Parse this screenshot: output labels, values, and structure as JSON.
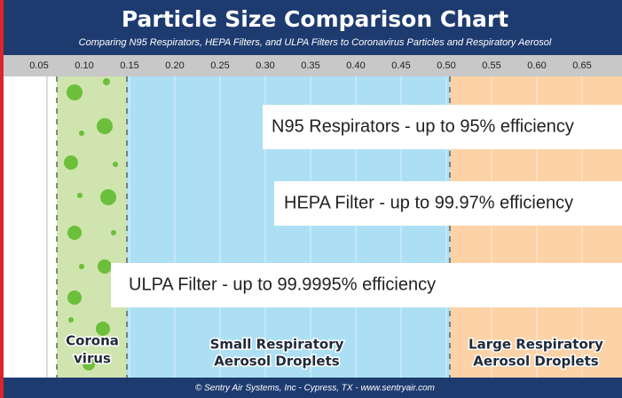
{
  "header": {
    "title": "Particle Size Comparison Chart",
    "subtitle": "Comparing N95 Respirators, HEPA Filters, and ULPA Filters to Coronavirus Particles and Respiratory Aerosol"
  },
  "axis": {
    "ticks": [
      "0.05",
      "0.10",
      "0.15",
      "0.20",
      "0.25",
      "0.30",
      "0.35",
      "0.40",
      "0.45",
      "0.50",
      "0.55",
      "0.60",
      "0.65"
    ]
  },
  "filters": [
    "N95 Respirators - up to 95% efficiency",
    "HEPA Filter - up to 99.97% efficiency",
    "ULPA Filter - up to 99.9995% efficiency"
  ],
  "zones": [
    [
      "Corona",
      "virus"
    ],
    [
      "Small Respiratory",
      "Aerosol Droplets"
    ],
    [
      "Large Respiratory",
      "Aerosol Droplets"
    ]
  ],
  "footer": "© Sentry Air Systems, Inc - Cypress, TX - www.sentryair.com"
}
